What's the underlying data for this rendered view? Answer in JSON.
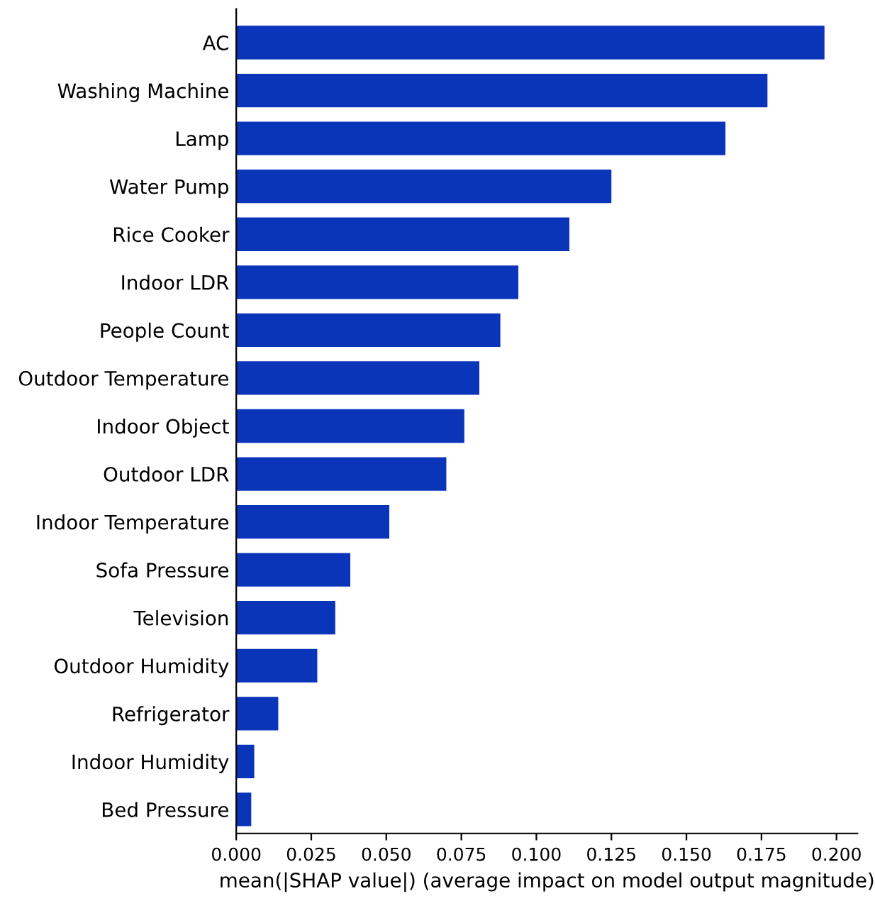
{
  "chart_data": {
    "type": "bar",
    "orientation": "horizontal",
    "xlabel": "mean(|SHAP value|) (average impact on model output magnitude)",
    "categories": [
      "AC",
      "Washing Machine",
      "Lamp",
      "Water Pump",
      "Rice Cooker",
      "Indoor LDR",
      "People Count",
      "Outdoor Temperature",
      "Indoor Object",
      "Outdoor LDR",
      "Indoor Temperature",
      "Sofa Pressure",
      "Television",
      "Outdoor Humidity",
      "Refrigerator",
      "Indoor Humidity",
      "Bed Pressure"
    ],
    "values": [
      0.196,
      0.177,
      0.163,
      0.125,
      0.111,
      0.094,
      0.088,
      0.081,
      0.076,
      0.07,
      0.051,
      0.038,
      0.033,
      0.027,
      0.014,
      0.006,
      0.005
    ],
    "color": "#0a35b8",
    "xlim": [
      0,
      0.207
    ],
    "xticks": [
      {
        "value": 0,
        "label": "0.000"
      },
      {
        "value": 0.025,
        "label": "0.025"
      },
      {
        "value": 0.05,
        "label": "0.050"
      },
      {
        "value": 0.075,
        "label": "0.075"
      },
      {
        "value": 0.1,
        "label": "0.100"
      },
      {
        "value": 0.125,
        "label": "0.125"
      },
      {
        "value": 0.15,
        "label": "0.150"
      },
      {
        "value": 0.175,
        "label": "0.175"
      },
      {
        "value": 0.2,
        "label": "0.200"
      }
    ],
    "grid": false,
    "legend": false
  }
}
